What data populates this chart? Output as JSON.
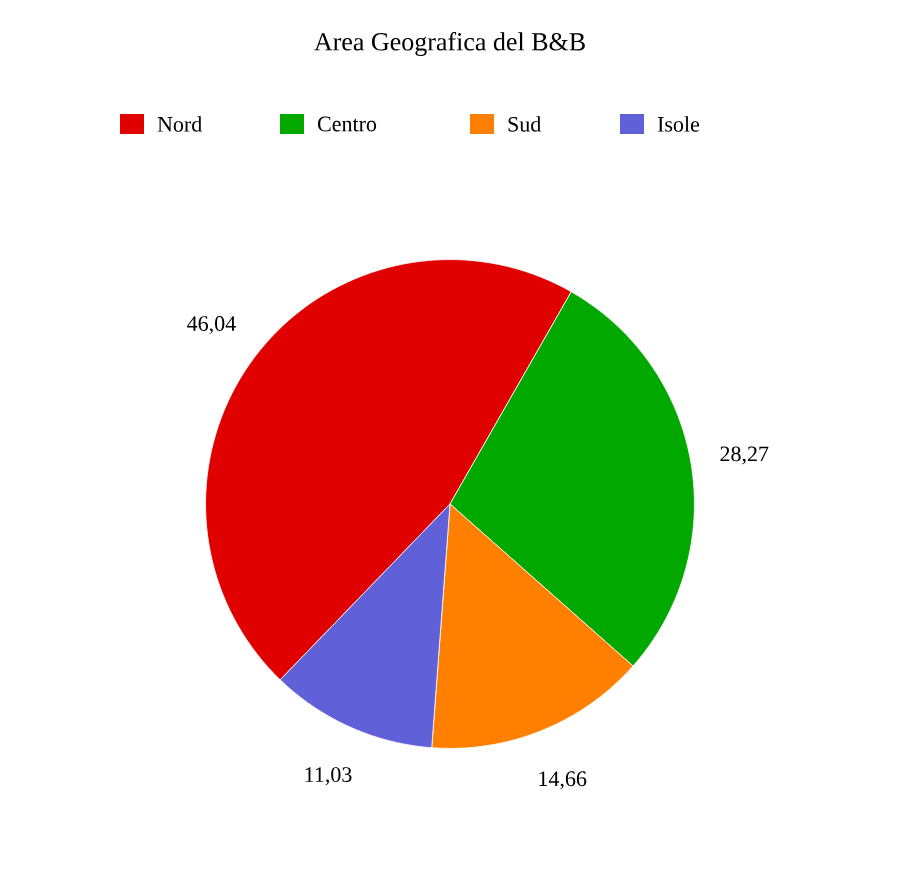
{
  "chart_data": {
    "type": "pie",
    "title": "Area Geografica del B&B",
    "categories": [
      "Nord",
      "Centro",
      "Sud",
      "Isole"
    ],
    "values": [
      46.04,
      28.27,
      14.66,
      11.03
    ],
    "value_labels": [
      "46,04",
      "28,27",
      "14,66",
      "11,03"
    ],
    "colors": [
      "#e00000",
      "#00a800",
      "#ff8000",
      "#6060d8"
    ],
    "legend": "top"
  }
}
